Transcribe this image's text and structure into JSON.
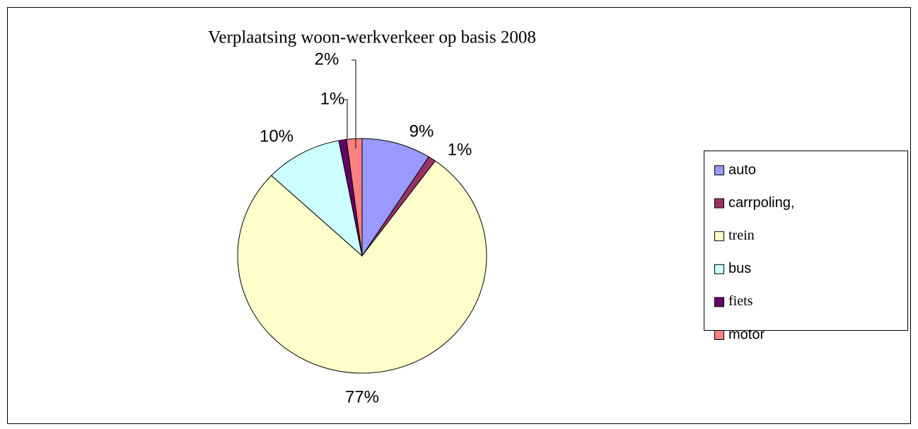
{
  "chart_data": {
    "type": "pie",
    "title": "Verplaatsing woon-werkverkeer op basis 2008",
    "categories": [
      "auto",
      "carrpoling,",
      "trein",
      "bus",
      "fiets",
      "motor"
    ],
    "values": [
      9,
      1,
      77,
      10,
      1,
      2
    ],
    "value_labels": [
      "9%",
      "1%",
      "77%",
      "10%",
      "1%",
      "2%"
    ],
    "colors": [
      "#9999ff",
      "#993366",
      "#ffffcc",
      "#ccffff",
      "#660066",
      "#ff8080"
    ],
    "legend": "right"
  }
}
